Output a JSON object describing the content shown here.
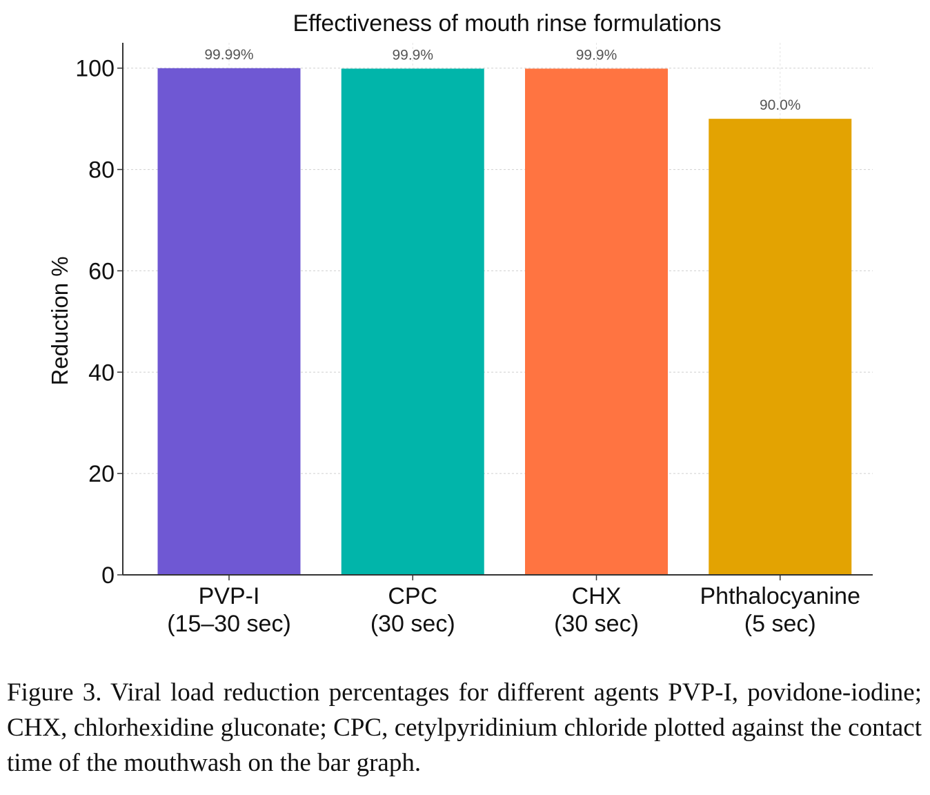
{
  "chart_data": {
    "type": "bar",
    "title": "Effectiveness of mouth rinse formulations",
    "xlabel": "",
    "ylabel": "Reduction %",
    "ylim": [
      0,
      105
    ],
    "yticks": [
      0,
      20,
      40,
      60,
      80,
      100
    ],
    "grid": true,
    "categories": [
      [
        "PVP-I",
        "(15–30 sec)"
      ],
      [
        "CPC",
        "(30 sec)"
      ],
      [
        "CHX",
        "(30 sec)"
      ],
      [
        "Phthalocyanine",
        "(5 sec)"
      ]
    ],
    "values": [
      99.99,
      99.9,
      99.9,
      90.0
    ],
    "value_labels": [
      "99.99%",
      "99.9%",
      "99.9%",
      "90.0%"
    ],
    "colors": [
      "#6f58d3",
      "#01b5aa",
      "#ff7441",
      "#e3a302"
    ]
  },
  "caption": "Figure 3. Viral load reduction percentages for different agents PVP-I, povidone-iodine; CHX, chlorhexidine gluconate; CPC, cetylpyridinium chloride plotted against the contact time of the mouthwash on the bar graph."
}
